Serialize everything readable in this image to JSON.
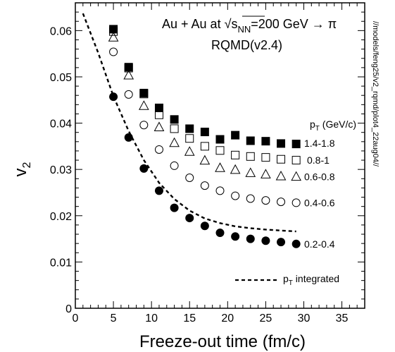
{
  "chart_data": {
    "type": "scatter",
    "title": "Au + Au at √s",
    "title_sub": "NN",
    "title_rest": "=200 GeV → π",
    "subtitle": "RQMD(v2.4)",
    "xlabel": "Freeze-out time (fm/c)",
    "ylabel": "v",
    "ylabel_sub": "2",
    "xlim": [
      0,
      38
    ],
    "ylim": [
      0,
      0.066
    ],
    "xticks": [
      "0",
      "5",
      "10",
      "15",
      "20",
      "25",
      "30",
      "35"
    ],
    "yticks": [
      "0",
      "0.01",
      "0.02",
      "0.03",
      "0.04",
      "0.05",
      "0.06"
    ],
    "legend_header": "p",
    "legend_header_sub": "T",
    "legend_header_rest": " (GeV/c)",
    "side_text": "//models/feng25/v2_rqmd/plot4_22aug04//",
    "series": [
      {
        "name": "1.4-1.8",
        "marker": "filled-square",
        "x": [
          5,
          7,
          9,
          11,
          13,
          15,
          17,
          19,
          21,
          23,
          25,
          27,
          29
        ],
        "y": [
          0.0603,
          0.0521,
          0.0465,
          0.0433,
          0.0408,
          0.0388,
          0.0381,
          0.0365,
          0.0374,
          0.0362,
          0.0361,
          0.0356,
          0.0355
        ]
      },
      {
        "name": "0.8-1",
        "marker": "open-square",
        "x": [
          5,
          7,
          9,
          11,
          13,
          15,
          17,
          19,
          21,
          23,
          25,
          27,
          29
        ],
        "y": [
          0.0598,
          0.0519,
          0.0463,
          0.0418,
          0.0388,
          0.0367,
          0.035,
          0.0341,
          0.0331,
          0.0328,
          0.0326,
          0.0322,
          0.032
        ]
      },
      {
        "name": "0.6-0.8",
        "marker": "open-triangle",
        "x": [
          5,
          7,
          9,
          11,
          13,
          15,
          17,
          19,
          21,
          23,
          25,
          27,
          29
        ],
        "y": [
          0.0585,
          0.0503,
          0.0437,
          0.0391,
          0.0357,
          0.0338,
          0.0319,
          0.0303,
          0.0299,
          0.0292,
          0.0289,
          0.0285,
          0.0284
        ]
      },
      {
        "name": "0.4-0.6",
        "marker": "open-circle",
        "x": [
          5,
          7,
          9,
          11,
          13,
          15,
          17,
          19,
          21,
          23,
          25,
          27,
          29
        ],
        "y": [
          0.0554,
          0.0462,
          0.0396,
          0.0343,
          0.0308,
          0.0282,
          0.0265,
          0.0254,
          0.0243,
          0.0237,
          0.0233,
          0.023,
          0.0228
        ]
      },
      {
        "name": "0.2-0.4",
        "marker": "filled-circle",
        "x": [
          5,
          7,
          9,
          11,
          13,
          15,
          17,
          19,
          21,
          23,
          25,
          27,
          29
        ],
        "y": [
          0.0457,
          0.0369,
          0.0302,
          0.0254,
          0.0217,
          0.0195,
          0.0178,
          0.0163,
          0.0155,
          0.015,
          0.0146,
          0.0143,
          0.0139
        ]
      },
      {
        "name": "p",
        "name_sub": "T",
        "name_rest": " integrated",
        "marker": "dashed-line",
        "x": [
          1,
          3,
          5,
          7,
          9,
          11,
          13,
          15,
          17,
          19,
          21,
          23,
          25,
          27,
          29
        ],
        "y": [
          0.0637,
          0.0552,
          0.0458,
          0.0383,
          0.032,
          0.0271,
          0.0236,
          0.0211,
          0.0194,
          0.0184,
          0.0177,
          0.0173,
          0.017,
          0.0168,
          0.0166
        ]
      }
    ]
  }
}
